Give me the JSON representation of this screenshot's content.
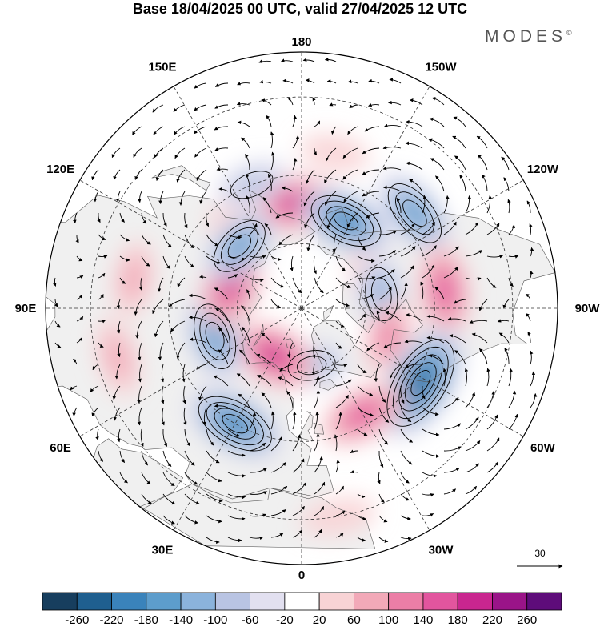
{
  "title": "Base 18/04/2025 00 UTC, valid 27/04/2025 12 UTC",
  "brand": {
    "name": "MODES",
    "mark": "©"
  },
  "map": {
    "projection": "north-polar-stereographic",
    "lon_labels": [
      "180",
      "150E",
      "120E",
      "90E",
      "60E",
      "30E",
      "0",
      "30W",
      "60W",
      "90W",
      "120W",
      "150W"
    ],
    "reference_vector": {
      "label": "30"
    },
    "colors": {
      "land": "#f0f0f0",
      "ocean": "#ffffff",
      "coast": "#555555",
      "grid": "#333333"
    },
    "anomalies": [
      {
        "lon": 178,
        "lat": 58,
        "value": 180
      },
      {
        "lon": 145,
        "lat": 55,
        "value": 40
      },
      {
        "lon": -153,
        "lat": 60,
        "value": -180
      },
      {
        "lon": -168,
        "lat": 43,
        "value": 40
      },
      {
        "lon": -130,
        "lat": 46,
        "value": -140
      },
      {
        "lon": -110,
        "lat": 67,
        "value": 80
      },
      {
        "lon": -97,
        "lat": 47,
        "value": 140
      },
      {
        "lon": -100,
        "lat": 65,
        "value": -120
      },
      {
        "lon": -72,
        "lat": 62,
        "value": 100
      },
      {
        "lon": -58,
        "lat": 48,
        "value": -240
      },
      {
        "lon": -30,
        "lat": 53,
        "value": 140
      },
      {
        "lon": -10,
        "lat": 72,
        "value": -100
      },
      {
        "lon": 30,
        "lat": 73,
        "value": 180
      },
      {
        "lon": 30,
        "lat": 50,
        "value": -180
      },
      {
        "lon": 72,
        "lat": 62,
        "value": -160
      },
      {
        "lon": 110,
        "lat": 67,
        "value": 180
      },
      {
        "lon": 135,
        "lat": 63,
        "value": -140
      },
      {
        "lon": 158,
        "lat": 50,
        "value": -80
      },
      {
        "lon": 75,
        "lat": 35,
        "value": 60
      },
      {
        "lon": 100,
        "lat": 40,
        "value": 60
      },
      {
        "lon": -10,
        "lat": 30,
        "value": 40
      }
    ]
  },
  "colorbar": {
    "colors": [
      "#173e5e",
      "#1f5f8f",
      "#3a83bb",
      "#5d9dcc",
      "#8bb3dc",
      "#b9c4e3",
      "#e2e0f0",
      "#ffffff",
      "#f8d3d5",
      "#f2a9b8",
      "#ec7ea6",
      "#e2559e",
      "#c9268f",
      "#9a1488",
      "#5e0c7a"
    ],
    "labels": [
      "-260",
      "-220",
      "-180",
      "-140",
      "-100",
      "-60",
      "-20",
      "20",
      "60",
      "100",
      "140",
      "180",
      "220",
      "260"
    ]
  }
}
